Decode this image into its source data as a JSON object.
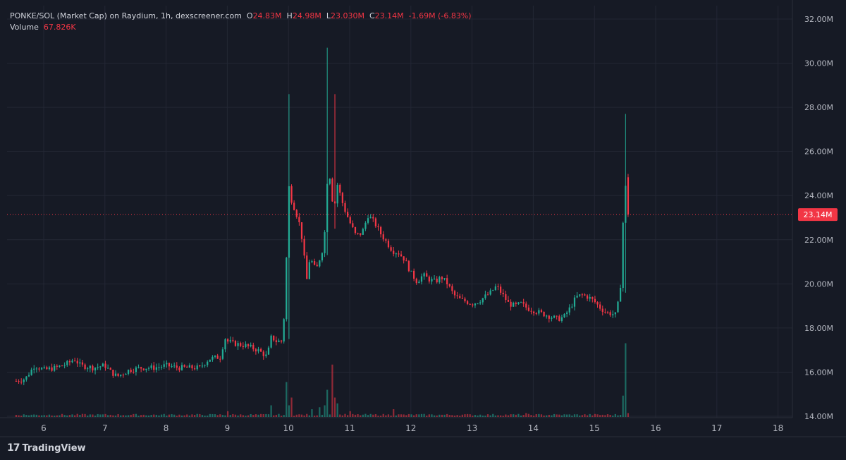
{
  "header": {
    "symbol": "PONKE/SOL (Market Cap) on Raydium, 1h, dexscreener.com",
    "o_label": "O",
    "o_value": "24.83M",
    "h_label": "H",
    "h_value": "24.98M",
    "l_label": "L",
    "l_value": "23.030M",
    "c_label": "C",
    "c_value": "23.14M",
    "change": "-1.69M (-6.83%)",
    "volume_label": "Volume",
    "volume_value": "67.826K"
  },
  "brand": {
    "logo": "17",
    "name": "TradingView"
  },
  "colors": {
    "up": "#22ab94",
    "down": "#f23645",
    "bg": "#161a25",
    "grid": "#232734",
    "text": "#b2b5be"
  },
  "chart_data": {
    "type": "candlestick",
    "interval": "1h",
    "ylim": [
      14,
      32
    ],
    "y_unit": "M",
    "y_ticks": [
      "14.00M",
      "16.00M",
      "18.00M",
      "20.00M",
      "22.00M",
      "24.00M",
      "26.00M",
      "28.00M",
      "30.00M",
      "32.00M"
    ],
    "x_ticks": [
      "6",
      "7",
      "8",
      "9",
      "10",
      "11",
      "12",
      "13",
      "14",
      "15",
      "16",
      "17",
      "18"
    ],
    "current_price": {
      "value": 23.14,
      "label": "23.14M"
    },
    "close_path": [
      [
        5.55,
        15.6
      ],
      [
        5.7,
        15.7
      ],
      [
        5.85,
        16.3
      ],
      [
        6.0,
        16.1
      ],
      [
        6.2,
        16.2
      ],
      [
        6.4,
        16.4
      ],
      [
        6.5,
        16.6
      ],
      [
        6.6,
        16.3
      ],
      [
        6.8,
        16.2
      ],
      [
        7.0,
        16.3
      ],
      [
        7.1,
        16.0
      ],
      [
        7.2,
        15.8
      ],
      [
        7.4,
        16.1
      ],
      [
        7.6,
        16.2
      ],
      [
        7.8,
        16.2
      ],
      [
        8.0,
        16.3
      ],
      [
        8.2,
        16.2
      ],
      [
        8.4,
        16.2
      ],
      [
        8.55,
        16.2
      ],
      [
        8.7,
        16.6
      ],
      [
        8.9,
        16.7
      ],
      [
        8.95,
        17.6
      ],
      [
        9.0,
        17.4
      ],
      [
        9.1,
        17.3
      ],
      [
        9.3,
        17.2
      ],
      [
        9.5,
        17.0
      ],
      [
        9.65,
        16.7
      ],
      [
        9.72,
        17.6
      ],
      [
        9.8,
        17.4
      ],
      [
        9.9,
        17.4
      ],
      [
        9.95,
        19.5
      ],
      [
        10.0,
        24.5
      ],
      [
        10.05,
        23.8
      ],
      [
        10.15,
        23.0
      ],
      [
        10.2,
        22.5
      ],
      [
        10.3,
        20.2
      ],
      [
        10.35,
        21.2
      ],
      [
        10.45,
        20.6
      ],
      [
        10.55,
        21.5
      ],
      [
        10.6,
        22.5
      ],
      [
        10.65,
        25.7
      ],
      [
        10.7,
        24.0
      ],
      [
        10.75,
        23.5
      ],
      [
        10.8,
        24.5
      ],
      [
        10.9,
        23.5
      ],
      [
        11.0,
        22.8
      ],
      [
        11.1,
        22.2
      ],
      [
        11.2,
        22.3
      ],
      [
        11.3,
        23.1
      ],
      [
        11.4,
        22.8
      ],
      [
        11.5,
        22.3
      ],
      [
        11.6,
        21.9
      ],
      [
        11.7,
        21.5
      ],
      [
        11.8,
        21.4
      ],
      [
        11.9,
        21.1
      ],
      [
        12.0,
        20.5
      ],
      [
        12.1,
        20.1
      ],
      [
        12.2,
        20.4
      ],
      [
        12.3,
        20.2
      ],
      [
        12.4,
        20.1
      ],
      [
        12.5,
        20.3
      ],
      [
        12.6,
        20.0
      ],
      [
        12.7,
        19.5
      ],
      [
        12.8,
        19.3
      ],
      [
        12.9,
        19.2
      ],
      [
        13.0,
        19.1
      ],
      [
        13.1,
        19.2
      ],
      [
        13.2,
        19.4
      ],
      [
        13.3,
        19.6
      ],
      [
        13.4,
        19.9
      ],
      [
        13.5,
        19.5
      ],
      [
        13.6,
        19.1
      ],
      [
        13.7,
        19.0
      ],
      [
        13.8,
        19.1
      ],
      [
        13.9,
        18.9
      ],
      [
        14.0,
        18.8
      ],
      [
        14.1,
        18.7
      ],
      [
        14.2,
        18.6
      ],
      [
        14.3,
        18.5
      ],
      [
        14.4,
        18.4
      ],
      [
        14.5,
        18.5
      ],
      [
        14.6,
        18.9
      ],
      [
        14.7,
        19.4
      ],
      [
        14.8,
        19.5
      ],
      [
        14.9,
        19.4
      ],
      [
        15.0,
        19.2
      ],
      [
        15.1,
        18.9
      ],
      [
        15.2,
        18.7
      ],
      [
        15.35,
        18.6
      ],
      [
        15.42,
        19.6
      ],
      [
        15.47,
        23.0
      ],
      [
        15.52,
        24.8
      ],
      [
        15.55,
        23.14
      ]
    ],
    "spikes": [
      {
        "x": 10.0,
        "high": 28.6,
        "low": 17.5
      },
      {
        "x": 10.65,
        "high": 30.7,
        "low": 21.3
      },
      {
        "x": 10.75,
        "high": 28.6,
        "low": 22.5
      },
      {
        "x": 15.5,
        "high": 27.7,
        "low": 19.6
      }
    ],
    "volume_spikes": [
      {
        "x": 9.95,
        "v": 0.9
      },
      {
        "x": 10.0,
        "v": 0.3
      },
      {
        "x": 10.05,
        "v": 0.5
      },
      {
        "x": 10.4,
        "v": 0.2
      },
      {
        "x": 10.5,
        "v": 0.25
      },
      {
        "x": 10.6,
        "v": 0.3
      },
      {
        "x": 10.65,
        "v": 0.7
      },
      {
        "x": 10.7,
        "v": 1.35
      },
      {
        "x": 10.75,
        "v": 0.5
      },
      {
        "x": 10.8,
        "v": 0.35
      },
      {
        "x": 9.7,
        "v": 0.3
      },
      {
        "x": 9.0,
        "v": 0.15
      },
      {
        "x": 11.0,
        "v": 0.15
      },
      {
        "x": 11.7,
        "v": 0.2
      },
      {
        "x": 13.9,
        "v": 0.1
      },
      {
        "x": 15.45,
        "v": 0.55
      },
      {
        "x": 15.5,
        "v": 0.4
      },
      {
        "x": 15.52,
        "v": 1.9
      },
      {
        "x": 15.55,
        "v": 0.1
      }
    ]
  }
}
